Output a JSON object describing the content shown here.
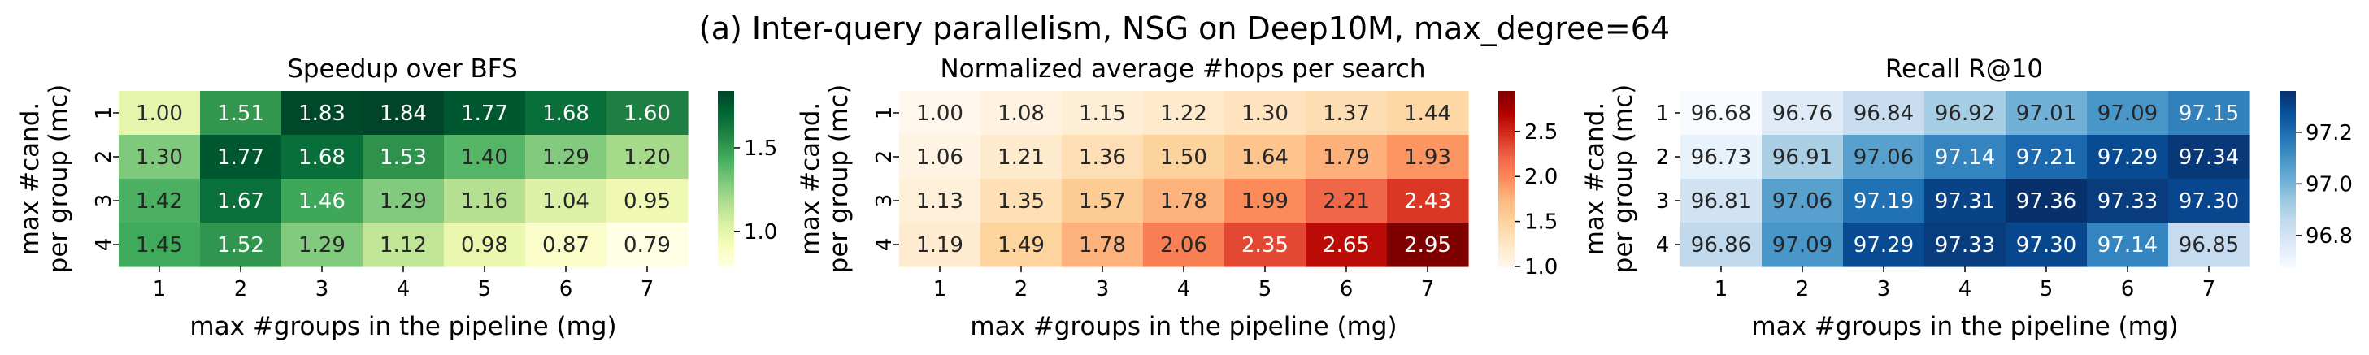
{
  "suptitle": "(a) Inter-query parallelism, NSG on Deep10M, max_degree=64",
  "chart_data": [
    {
      "type": "heatmap",
      "title": "Speedup over BFS",
      "xlabel": "max #groups in the pipeline (mg)",
      "ylabel": [
        "max #cand.",
        "per group (mc)"
      ],
      "x": [
        "1",
        "2",
        "3",
        "4",
        "5",
        "6",
        "7"
      ],
      "y": [
        "1",
        "2",
        "3",
        "4"
      ],
      "values": [
        [
          1.0,
          1.51,
          1.83,
          1.84,
          1.77,
          1.68,
          1.6
        ],
        [
          1.3,
          1.77,
          1.68,
          1.53,
          1.4,
          1.29,
          1.2
        ],
        [
          1.42,
          1.67,
          1.46,
          1.29,
          1.16,
          1.04,
          0.95
        ],
        [
          1.45,
          1.52,
          1.29,
          1.12,
          0.98,
          0.87,
          0.79
        ]
      ],
      "labels": [
        [
          "1.00",
          "1.51",
          "1.83",
          "1.84",
          "1.77",
          "1.68",
          "1.60"
        ],
        [
          "1.30",
          "1.77",
          "1.68",
          "1.53",
          "1.40",
          "1.29",
          "1.20"
        ],
        [
          "1.42",
          "1.67",
          "1.46",
          "1.29",
          "1.16",
          "1.04",
          "0.95"
        ],
        [
          "1.45",
          "1.52",
          "1.29",
          "1.12",
          "0.98",
          "0.87",
          "0.79"
        ]
      ],
      "colormap": "Greens",
      "vmin": 0.79,
      "vmax": 1.84,
      "colorbar_ticks": [
        1.0,
        1.5
      ],
      "colorbar_tick_labels": [
        "1.0",
        "1.5"
      ],
      "ytick_rotation": "vertical"
    },
    {
      "type": "heatmap",
      "title": "Normalized average #hops per search",
      "xlabel": "max #groups in the pipeline (mg)",
      "ylabel": [
        "max #cand.",
        "per group (mc)"
      ],
      "x": [
        "1",
        "2",
        "3",
        "4",
        "5",
        "6",
        "7"
      ],
      "y": [
        "1",
        "2",
        "3",
        "4"
      ],
      "values": [
        [
          1.0,
          1.08,
          1.15,
          1.22,
          1.3,
          1.37,
          1.44
        ],
        [
          1.06,
          1.21,
          1.36,
          1.5,
          1.64,
          1.79,
          1.93
        ],
        [
          1.13,
          1.35,
          1.57,
          1.78,
          1.99,
          2.21,
          2.43
        ],
        [
          1.19,
          1.49,
          1.78,
          2.06,
          2.35,
          2.65,
          2.95
        ]
      ],
      "labels": [
        [
          "1.00",
          "1.08",
          "1.15",
          "1.22",
          "1.30",
          "1.37",
          "1.44"
        ],
        [
          "1.06",
          "1.21",
          "1.36",
          "1.50",
          "1.64",
          "1.79",
          "1.93"
        ],
        [
          "1.13",
          "1.35",
          "1.57",
          "1.78",
          "1.99",
          "2.21",
          "2.43"
        ],
        [
          "1.19",
          "1.49",
          "1.78",
          "2.06",
          "2.35",
          "2.65",
          "2.95"
        ]
      ],
      "colormap": "OrRd",
      "vmin": 1.0,
      "vmax": 2.95,
      "colorbar_ticks": [
        1.0,
        1.5,
        2.0,
        2.5
      ],
      "colorbar_tick_labels": [
        "1.0",
        "1.5",
        "2.0",
        "2.5"
      ],
      "ytick_rotation": "vertical"
    },
    {
      "type": "heatmap",
      "title": "Recall R@10",
      "xlabel": "max #groups in the pipeline (mg)",
      "ylabel": [
        "max #cand.",
        "per group (mc)"
      ],
      "x": [
        "1",
        "2",
        "3",
        "4",
        "5",
        "6",
        "7"
      ],
      "y": [
        "1",
        "2",
        "3",
        "4"
      ],
      "values": [
        [
          96.68,
          96.76,
          96.84,
          96.92,
          97.01,
          97.09,
          97.15
        ],
        [
          96.73,
          96.91,
          97.06,
          97.14,
          97.21,
          97.29,
          97.34
        ],
        [
          96.81,
          97.06,
          97.19,
          97.31,
          97.36,
          97.33,
          97.3
        ],
        [
          96.86,
          97.09,
          97.29,
          97.33,
          97.3,
          97.14,
          96.85
        ]
      ],
      "labels": [
        [
          "96.68",
          "96.76",
          "96.84",
          "96.92",
          "97.01",
          "97.09",
          "97.15"
        ],
        [
          "96.73",
          "96.91",
          "97.06",
          "97.14",
          "97.21",
          "97.29",
          "97.34"
        ],
        [
          "96.81",
          "97.06",
          "97.19",
          "97.31",
          "97.36",
          "97.33",
          "97.30"
        ],
        [
          "96.86",
          "97.09",
          "97.29",
          "97.33",
          "97.30",
          "97.14",
          "96.85"
        ]
      ],
      "colormap": "Blues",
      "vmin": 96.68,
      "vmax": 97.36,
      "colorbar_ticks": [
        96.8,
        97.0,
        97.2
      ],
      "colorbar_tick_labels": [
        "96.8",
        "97.0",
        "97.2"
      ],
      "ytick_rotation": "horizontal"
    }
  ]
}
